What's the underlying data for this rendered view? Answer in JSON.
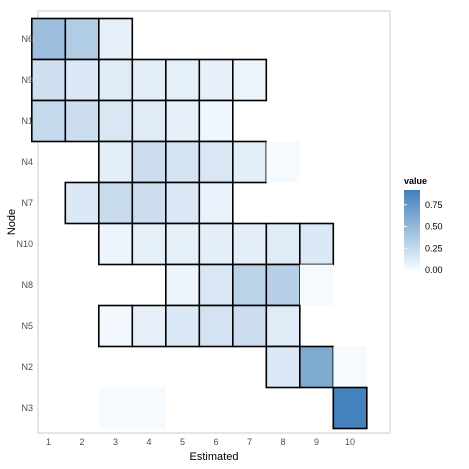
{
  "chart_data": {
    "type": "heatmap",
    "xlabel": "Estimated",
    "ylabel": "Node",
    "x_categories": [
      "1",
      "2",
      "3",
      "4",
      "5",
      "6",
      "7",
      "8",
      "9",
      "10"
    ],
    "y_categories": [
      "N6",
      "N9",
      "N1",
      "N4",
      "N7",
      "N10",
      "N8",
      "N5",
      "N2",
      "N3"
    ],
    "legend": {
      "title": "value",
      "ticks": [
        "0.00",
        "0.25",
        "0.50",
        "0.75"
      ],
      "range": [
        0,
        0.92
      ],
      "low_color": "#f7fbff",
      "high_color": "#3f7fba",
      "placement": "right"
    },
    "cells": [
      {
        "node": "N6",
        "estimated": 1,
        "value": 0.45,
        "outlined": true
      },
      {
        "node": "N6",
        "estimated": 2,
        "value": 0.35,
        "outlined": true
      },
      {
        "node": "N6",
        "estimated": 3,
        "value": 0.08,
        "outlined": true
      },
      {
        "node": "N9",
        "estimated": 1,
        "value": 0.2,
        "outlined": true
      },
      {
        "node": "N9",
        "estimated": 2,
        "value": 0.14,
        "outlined": true
      },
      {
        "node": "N9",
        "estimated": 3,
        "value": 0.12,
        "outlined": true
      },
      {
        "node": "N9",
        "estimated": 4,
        "value": 0.1,
        "outlined": true
      },
      {
        "node": "N9",
        "estimated": 5,
        "value": 0.09,
        "outlined": true
      },
      {
        "node": "N9",
        "estimated": 6,
        "value": 0.08,
        "outlined": true
      },
      {
        "node": "N9",
        "estimated": 7,
        "value": 0.06,
        "outlined": true
      },
      {
        "node": "N1",
        "estimated": 1,
        "value": 0.25,
        "outlined": true
      },
      {
        "node": "N1",
        "estimated": 2,
        "value": 0.22,
        "outlined": true
      },
      {
        "node": "N1",
        "estimated": 3,
        "value": 0.15,
        "outlined": true
      },
      {
        "node": "N1",
        "estimated": 4,
        "value": 0.12,
        "outlined": true
      },
      {
        "node": "N1",
        "estimated": 5,
        "value": 0.08,
        "outlined": true
      },
      {
        "node": "N1",
        "estimated": 6,
        "value": 0.04,
        "outlined": true
      },
      {
        "node": "N4",
        "estimated": 3,
        "value": 0.1,
        "outlined": true
      },
      {
        "node": "N4",
        "estimated": 4,
        "value": 0.22,
        "outlined": true
      },
      {
        "node": "N4",
        "estimated": 5,
        "value": 0.18,
        "outlined": true
      },
      {
        "node": "N4",
        "estimated": 6,
        "value": 0.15,
        "outlined": true
      },
      {
        "node": "N4",
        "estimated": 7,
        "value": 0.1,
        "outlined": true
      },
      {
        "node": "N4",
        "estimated": 8,
        "value": 0.01,
        "outlined": false
      },
      {
        "node": "N7",
        "estimated": 2,
        "value": 0.14,
        "outlined": true
      },
      {
        "node": "N7",
        "estimated": 3,
        "value": 0.24,
        "outlined": true
      },
      {
        "node": "N7",
        "estimated": 4,
        "value": 0.22,
        "outlined": true
      },
      {
        "node": "N7",
        "estimated": 5,
        "value": 0.14,
        "outlined": true
      },
      {
        "node": "N7",
        "estimated": 6,
        "value": 0.07,
        "outlined": true
      },
      {
        "node": "N10",
        "estimated": 3,
        "value": 0.05,
        "outlined": true
      },
      {
        "node": "N10",
        "estimated": 4,
        "value": 0.09,
        "outlined": true
      },
      {
        "node": "N10",
        "estimated": 5,
        "value": 0.09,
        "outlined": true
      },
      {
        "node": "N10",
        "estimated": 6,
        "value": 0.1,
        "outlined": true
      },
      {
        "node": "N10",
        "estimated": 7,
        "value": 0.1,
        "outlined": true
      },
      {
        "node": "N10",
        "estimated": 8,
        "value": 0.12,
        "outlined": true
      },
      {
        "node": "N10",
        "estimated": 9,
        "value": 0.14,
        "outlined": true
      },
      {
        "node": "N8",
        "estimated": 5,
        "value": 0.05,
        "outlined": true
      },
      {
        "node": "N8",
        "estimated": 6,
        "value": 0.15,
        "outlined": true
      },
      {
        "node": "N8",
        "estimated": 7,
        "value": 0.3,
        "outlined": true
      },
      {
        "node": "N8",
        "estimated": 8,
        "value": 0.32,
        "outlined": true
      },
      {
        "node": "N8",
        "estimated": 9,
        "value": 0.01,
        "outlined": false
      },
      {
        "node": "N5",
        "estimated": 3,
        "value": 0.03,
        "outlined": true
      },
      {
        "node": "N5",
        "estimated": 4,
        "value": 0.08,
        "outlined": true
      },
      {
        "node": "N5",
        "estimated": 5,
        "value": 0.14,
        "outlined": true
      },
      {
        "node": "N5",
        "estimated": 6,
        "value": 0.18,
        "outlined": true
      },
      {
        "node": "N5",
        "estimated": 7,
        "value": 0.22,
        "outlined": true
      },
      {
        "node": "N5",
        "estimated": 8,
        "value": 0.12,
        "outlined": true
      },
      {
        "node": "N2",
        "estimated": 8,
        "value": 0.14,
        "outlined": true
      },
      {
        "node": "N2",
        "estimated": 9,
        "value": 0.6,
        "outlined": true
      },
      {
        "node": "N2",
        "estimated": 10,
        "value": 0.01,
        "outlined": false
      },
      {
        "node": "N3",
        "estimated": 3,
        "value": 0.01,
        "outlined": false
      },
      {
        "node": "N3",
        "estimated": 4,
        "value": 0.01,
        "outlined": false
      },
      {
        "node": "N3",
        "estimated": 10,
        "value": 0.9,
        "outlined": true
      }
    ]
  }
}
